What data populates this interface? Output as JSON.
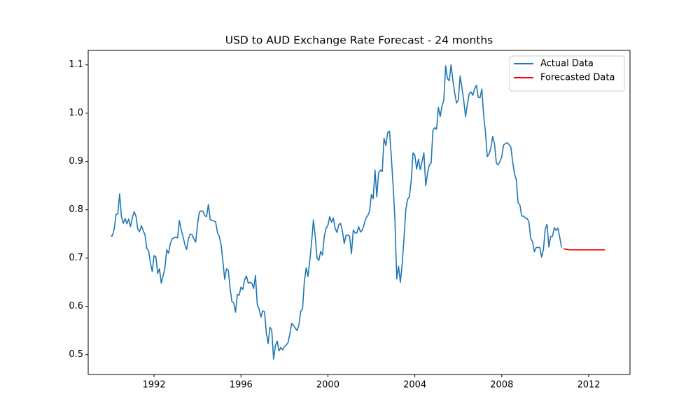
{
  "chart_data": {
    "type": "line",
    "title": "USD to AUD Exchange Rate Forecast - 24 months",
    "xlim": [
      1988.97,
      2013.9
    ],
    "ylim": [
      0.459,
      1.13
    ],
    "xticks": [
      1992,
      1996,
      2000,
      2004,
      2008,
      2012
    ],
    "yticks": [
      0.5,
      0.6,
      0.7,
      0.8,
      0.9,
      {
        "value": 1,
        "label": "1.0"
      },
      1.1
    ],
    "legend": "upper right",
    "series": [
      {
        "name": "Actual Data",
        "color": "#1f77b4",
        "x": [
          1990.0,
          1990.083,
          1990.167,
          1990.25,
          1990.333,
          1990.417,
          1990.5,
          1990.583,
          1990.667,
          1990.75,
          1990.833,
          1990.917,
          1991.0,
          1991.083,
          1991.167,
          1991.25,
          1991.333,
          1991.417,
          1991.5,
          1991.583,
          1991.667,
          1991.75,
          1991.833,
          1991.917,
          1992.0,
          1992.083,
          1992.167,
          1992.25,
          1992.333,
          1992.417,
          1992.5,
          1992.583,
          1992.667,
          1992.75,
          1992.833,
          1992.917,
          1993.0,
          1993.083,
          1993.167,
          1993.25,
          1993.333,
          1993.417,
          1993.5,
          1993.583,
          1993.667,
          1993.75,
          1993.833,
          1993.917,
          1994.0,
          1994.083,
          1994.167,
          1994.25,
          1994.333,
          1994.417,
          1994.5,
          1994.583,
          1994.667,
          1994.75,
          1994.833,
          1994.917,
          1995.0,
          1995.083,
          1995.167,
          1995.25,
          1995.333,
          1995.417,
          1995.5,
          1995.583,
          1995.667,
          1995.75,
          1995.833,
          1995.917,
          1996.0,
          1996.083,
          1996.167,
          1996.25,
          1996.333,
          1996.417,
          1996.5,
          1996.583,
          1996.667,
          1996.75,
          1996.833,
          1996.917,
          1997.0,
          1997.083,
          1997.167,
          1997.25,
          1997.333,
          1997.417,
          1997.5,
          1997.583,
          1997.667,
          1997.75,
          1997.833,
          1997.917,
          1998.0,
          1998.083,
          1998.167,
          1998.25,
          1998.333,
          1998.417,
          1998.5,
          1998.583,
          1998.667,
          1998.75,
          1998.833,
          1998.917,
          1999.0,
          1999.083,
          1999.167,
          1999.25,
          1999.333,
          1999.417,
          1999.5,
          1999.583,
          1999.667,
          1999.75,
          1999.833,
          1999.917,
          2000.0,
          2000.083,
          2000.167,
          2000.25,
          2000.333,
          2000.417,
          2000.5,
          2000.583,
          2000.667,
          2000.75,
          2000.833,
          2000.917,
          2001.0,
          2001.083,
          2001.167,
          2001.25,
          2001.333,
          2001.417,
          2001.5,
          2001.583,
          2001.667,
          2001.75,
          2001.833,
          2001.917,
          2002.0,
          2002.083,
          2002.167,
          2002.25,
          2002.333,
          2002.417,
          2002.5,
          2002.583,
          2002.667,
          2002.75,
          2002.833,
          2002.917,
          2003.0,
          2003.083,
          2003.167,
          2003.25,
          2003.333,
          2003.417,
          2003.5,
          2003.583,
          2003.667,
          2003.75,
          2003.833,
          2003.917,
          2004.0,
          2004.083,
          2004.167,
          2004.25,
          2004.333,
          2004.417,
          2004.5,
          2004.583,
          2004.667,
          2004.75,
          2004.833,
          2004.917,
          2005.0,
          2005.083,
          2005.167,
          2005.25,
          2005.333,
          2005.417,
          2005.5,
          2005.583,
          2005.667,
          2005.75,
          2005.833,
          2005.917,
          2006.0,
          2006.083,
          2006.167,
          2006.25,
          2006.333,
          2006.417,
          2006.5,
          2006.583,
          2006.667,
          2006.75,
          2006.833,
          2006.917,
          2007.0,
          2007.083,
          2007.167,
          2007.25,
          2007.333,
          2007.417,
          2007.5,
          2007.583,
          2007.667,
          2007.75,
          2007.833,
          2007.917,
          2008.0,
          2008.083,
          2008.167,
          2008.25,
          2008.333,
          2008.417,
          2008.5,
          2008.583,
          2008.667,
          2008.75,
          2008.833,
          2008.917,
          2009.0,
          2009.083,
          2009.167,
          2009.25,
          2009.333,
          2009.417,
          2009.5,
          2009.583,
          2009.667,
          2009.75,
          2009.833,
          2009.917,
          2010.0,
          2010.083,
          2010.167,
          2010.25,
          2010.333,
          2010.417,
          2010.5,
          2010.583,
          2010.667,
          2010.75
        ],
        "values": [
          0.746,
          0.746,
          0.76,
          0.79,
          0.792,
          0.833,
          0.786,
          0.772,
          0.782,
          0.771,
          0.781,
          0.765,
          0.783,
          0.796,
          0.787,
          0.76,
          0.755,
          0.767,
          0.757,
          0.748,
          0.72,
          0.715,
          0.69,
          0.672,
          0.705,
          0.703,
          0.668,
          0.678,
          0.648,
          0.663,
          0.68,
          0.717,
          0.71,
          0.73,
          0.74,
          0.742,
          0.743,
          0.742,
          0.778,
          0.758,
          0.745,
          0.728,
          0.718,
          0.74,
          0.75,
          0.748,
          0.74,
          0.733,
          0.77,
          0.795,
          0.798,
          0.797,
          0.788,
          0.786,
          0.811,
          0.78,
          0.778,
          0.777,
          0.775,
          0.753,
          0.745,
          0.728,
          0.693,
          0.656,
          0.678,
          0.675,
          0.637,
          0.61,
          0.607,
          0.588,
          0.625,
          0.623,
          0.64,
          0.635,
          0.655,
          0.663,
          0.648,
          0.65,
          0.648,
          0.637,
          0.664,
          0.603,
          0.595,
          0.578,
          0.591,
          0.589,
          0.545,
          0.523,
          0.557,
          0.55,
          0.491,
          0.519,
          0.528,
          0.508,
          0.515,
          0.51,
          0.517,
          0.52,
          0.525,
          0.543,
          0.565,
          0.56,
          0.555,
          0.55,
          0.562,
          0.59,
          0.595,
          0.652,
          0.68,
          0.662,
          0.695,
          0.733,
          0.779,
          0.745,
          0.7,
          0.695,
          0.714,
          0.706,
          0.745,
          0.762,
          0.768,
          0.786,
          0.774,
          0.783,
          0.762,
          0.753,
          0.769,
          0.772,
          0.756,
          0.73,
          0.747,
          0.748,
          0.745,
          0.709,
          0.758,
          0.752,
          0.752,
          0.765,
          0.754,
          0.758,
          0.77,
          0.783,
          0.788,
          0.797,
          0.832,
          0.823,
          0.882,
          0.827,
          0.877,
          0.882,
          0.879,
          0.948,
          0.933,
          0.96,
          0.963,
          0.91,
          0.85,
          0.78,
          0.657,
          0.683,
          0.65,
          0.688,
          0.74,
          0.8,
          0.822,
          0.827,
          0.86,
          0.918,
          0.913,
          0.884,
          0.905,
          0.883,
          0.9,
          0.918,
          0.85,
          0.875,
          0.893,
          0.897,
          0.965,
          0.97,
          0.967,
          1.012,
          0.993,
          1.015,
          1.027,
          1.098,
          1.072,
          1.067,
          1.1,
          1.068,
          1.042,
          1.021,
          1.027,
          1.077,
          1.053,
          1.026,
          0.993,
          1.018,
          1.04,
          1.044,
          1.037,
          1.05,
          1.058,
          1.033,
          1.032,
          1.05,
          0.995,
          0.96,
          0.91,
          0.916,
          0.928,
          0.952,
          0.936,
          0.897,
          0.893,
          0.9,
          0.91,
          0.934,
          0.937,
          0.939,
          0.935,
          0.93,
          0.9,
          0.875,
          0.862,
          0.815,
          0.81,
          0.787,
          0.787,
          0.783,
          0.782,
          0.775,
          0.74,
          0.734,
          0.713,
          0.722,
          0.722,
          0.722,
          0.702,
          0.718,
          0.76,
          0.77,
          0.723,
          0.745,
          0.745,
          0.763,
          0.757,
          0.762,
          0.743,
          0.722
        ]
      },
      {
        "name": "Forecasted Data",
        "color": "#ff0000",
        "x": [
          2010.833,
          2010.917,
          2011.0,
          2011.083,
          2011.167,
          2011.25,
          2011.333,
          2011.417,
          2011.5,
          2011.583,
          2011.667,
          2011.75,
          2011.833,
          2011.917,
          2012.0,
          2012.083,
          2012.167,
          2012.25,
          2012.333,
          2012.417,
          2012.5,
          2012.583,
          2012.667,
          2012.75
        ],
        "values": [
          0.72,
          0.7185,
          0.718,
          0.7175,
          0.7172,
          0.717,
          0.717,
          0.717,
          0.717,
          0.717,
          0.717,
          0.717,
          0.717,
          0.717,
          0.717,
          0.717,
          0.717,
          0.717,
          0.717,
          0.717,
          0.717,
          0.717,
          0.717,
          0.717
        ]
      }
    ]
  }
}
